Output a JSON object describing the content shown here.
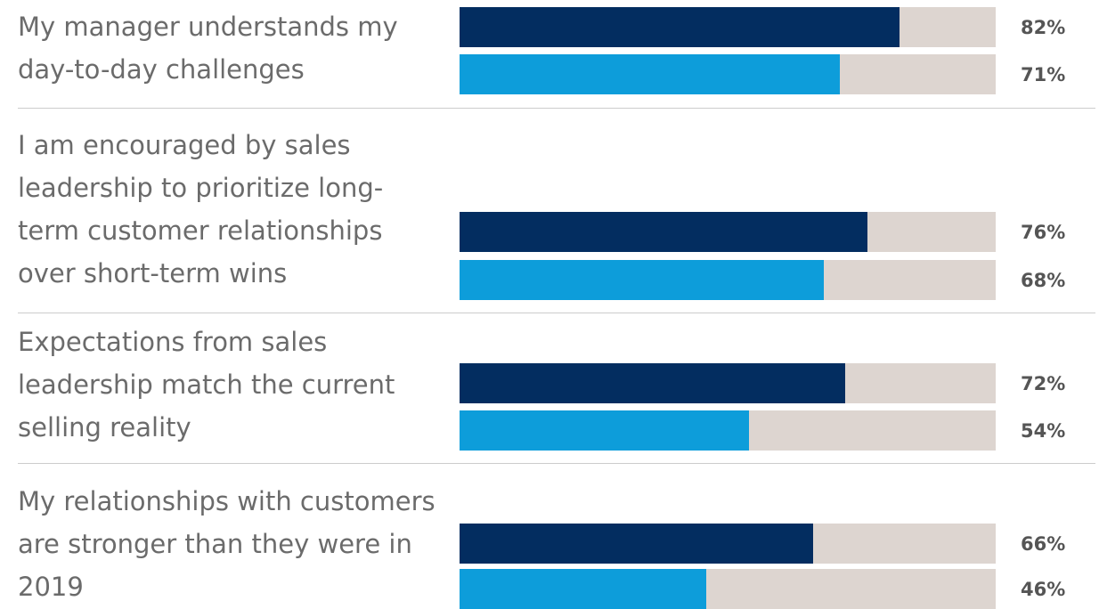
{
  "chart_data": {
    "type": "bar",
    "orientation": "horizontal",
    "categories": [
      "My manager understands my day-to-day challenges",
      "I am encouraged by sales leadership to prioritize long-term customer relationships over short-term wins",
      "Expectations from sales leadership match the current selling reality",
      "My relationships with customers are stronger than they were in 2019"
    ],
    "series": [
      {
        "color": "#032d60",
        "values": [
          82,
          76,
          72,
          66
        ],
        "value_labels": [
          "82%",
          "76%",
          "72%",
          "66%"
        ]
      },
      {
        "color": "#0d9dda",
        "values": [
          71,
          68,
          54,
          46
        ],
        "value_labels": [
          "71%",
          "68%",
          "54%",
          "46%"
        ]
      }
    ],
    "xlim": [
      0,
      100
    ],
    "track_color": "#ddd5d0"
  }
}
